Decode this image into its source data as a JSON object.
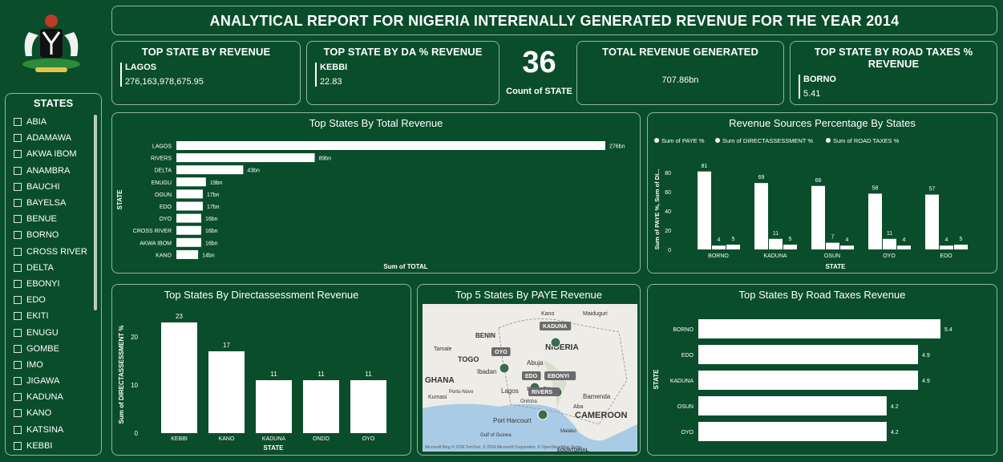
{
  "header": {
    "title": "ANALYTICAL REPORT FOR NIGERIA INTERENALLY GENERATED REVENUE FOR THE YEAR 2014"
  },
  "logo": {
    "icon": "nigeria-coat-of-arms"
  },
  "kpis": {
    "top_state_revenue": {
      "title": "TOP STATE BY REVENUE",
      "state": "LAGOS",
      "value": "276,163,978,675.95"
    },
    "top_state_da": {
      "title": "TOP STATE BY DA % REVENUE",
      "state": "KEBBI",
      "value": "22.83"
    },
    "count": {
      "value": "36",
      "label": "Count of STATE"
    },
    "total_revenue": {
      "title": "TOTAL REVENUE GENERATED",
      "value": "707.86bn"
    },
    "top_state_road": {
      "title": "TOP STATE BY ROAD TAXES % REVENUE",
      "state": "BORNO",
      "value": "5.41"
    }
  },
  "slicer": {
    "title": "STATES",
    "items": [
      "ABIA",
      "ADAMAWA",
      "AKWA IBOM",
      "ANAMBRA",
      "BAUCHI",
      "BAYELSA",
      "BENUE",
      "BORNO",
      "CROSS RIVER",
      "DELTA",
      "EBONYI",
      "EDO",
      "EKITI",
      "ENUGU",
      "GOMBE",
      "IMO",
      "JIGAWA",
      "KADUNA",
      "KANO",
      "KATSINA",
      "KEBBI"
    ]
  },
  "colors": {
    "background": "#0a4d2b",
    "bar": "#ffffff",
    "border": "#8fb89e"
  },
  "chart_data": [
    {
      "id": "total_revenue",
      "type": "bar",
      "orientation": "horizontal",
      "title": "Top States By Total Revenue",
      "xlabel": "Sum of TOTAL",
      "ylabel": "STATE",
      "categories": [
        "LAGOS",
        "RIVERS",
        "DELTA",
        "ENUGU",
        "OGUN",
        "EDO",
        "OYO",
        "CROSS RIVER",
        "AKWA IBOM",
        "KANO"
      ],
      "values": [
        276,
        89,
        43,
        19,
        17,
        17,
        16,
        16,
        16,
        14
      ],
      "labels": [
        "276bn",
        "89bn",
        "43bn",
        "19bn",
        "17bn",
        "17bn",
        "16bn",
        "16bn",
        "16bn",
        "14bn"
      ]
    },
    {
      "id": "revenue_sources",
      "type": "bar",
      "title": "Revenue Sources Percentage By States",
      "xlabel": "STATE",
      "ylabel": "Sum of PAYE %, Sum of DI...",
      "categories": [
        "BORNO",
        "KADUNA",
        "OSUN",
        "OYO",
        "EDO"
      ],
      "yticks": [
        0,
        20,
        40,
        60,
        80
      ],
      "ylim": [
        0,
        85
      ],
      "legend_position": "top-left",
      "series": [
        {
          "name": "Sum of PAYE %",
          "values": [
            81,
            69,
            66,
            58,
            57
          ]
        },
        {
          "name": "Sum of DIRECTASSESSMENT %",
          "values": [
            4,
            11,
            7,
            11,
            4
          ]
        },
        {
          "name": "Sum of ROAD TAXES %",
          "values": [
            5,
            5,
            4,
            4,
            5
          ]
        }
      ]
    },
    {
      "id": "directassessment",
      "type": "bar",
      "title": "Top States By Directassessment Revenue",
      "xlabel": "STATE",
      "ylabel": "Sum of DIRECTASSESSMENT %",
      "categories": [
        "KEBBI",
        "KANO",
        "KADUNA",
        "ONDO",
        "OYO"
      ],
      "values": [
        23,
        17,
        11,
        11,
        11
      ],
      "yticks": [
        0,
        10,
        20
      ],
      "ylim": [
        0,
        24
      ]
    },
    {
      "id": "road_taxes",
      "type": "bar",
      "orientation": "horizontal",
      "title": "Top States By Road Taxes Revenue",
      "ylabel": "STATE",
      "categories": [
        "BORNO",
        "EDO",
        "KADUNA",
        "OSUN",
        "OYO"
      ],
      "values": [
        5.4,
        4.9,
        4.9,
        4.2,
        4.2
      ],
      "labels": [
        "5.4",
        "4.9",
        "4.9",
        "4.2",
        "4.2"
      ]
    }
  ],
  "map": {
    "title": "Top 5 States By PAYE Revenue",
    "markers": [
      "KADUNA",
      "OYO",
      "EDO",
      "EBONYI",
      "RIVERS"
    ],
    "place_labels": [
      "Kano",
      "Maiduguri",
      "BENIN",
      "NIGERIA",
      "Tamale",
      "TOGO",
      "GHANA",
      "Abuja",
      "Ibadan",
      "Lagos",
      "Kumasi",
      "Porto-Novo",
      "Benin City",
      "Onitsha",
      "Aba",
      "Port Harcourt",
      "Bamenda",
      "CAMEROON",
      "Gulf of Guinea",
      "Malabo",
      "EQUATORIAL"
    ],
    "attribution": "Microsoft Bing  © 2024 TomTom, © 2024 Microsoft Corporation, © OpenStreetMap  Terms"
  }
}
